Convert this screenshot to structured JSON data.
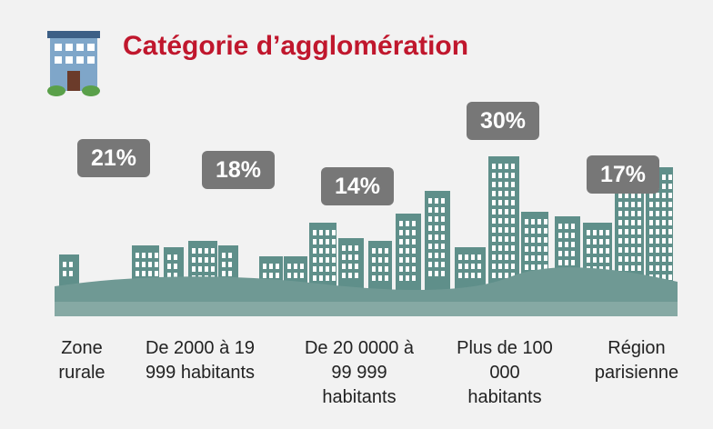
{
  "chart_data": {
    "type": "pictogram",
    "title": "Catégorie d’agglomération",
    "categories": [
      "Zone rurale",
      "De 2000 à 19 999 habitants",
      "De 20 0000 à 99 999 habitants",
      "Plus de 100 000 habitants",
      "Région parisienne"
    ],
    "values": [
      21,
      18,
      14,
      30,
      17
    ],
    "value_labels": [
      "21%",
      "18%",
      "14%",
      "30%",
      "17%"
    ],
    "color": "#777777"
  }
}
